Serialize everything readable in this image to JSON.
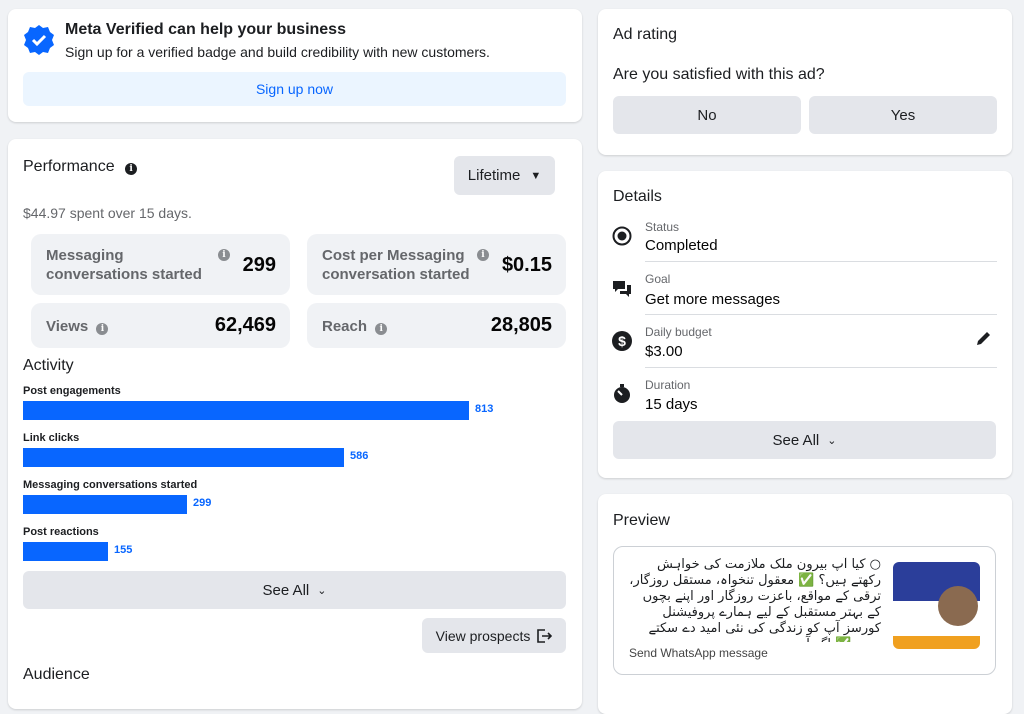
{
  "verified": {
    "title": "Meta Verified can help your business",
    "subtitle": "Sign up for a verified badge and build credibility with new customers.",
    "button": "Sign up now"
  },
  "performance": {
    "title": "Performance",
    "period": "Lifetime",
    "spent": "$44.97 spent over 15 days.",
    "metrics": [
      {
        "label": "Messaging conversations started",
        "value": "299"
      },
      {
        "label": "Cost per Messaging conversation started",
        "value": "$0.15"
      },
      {
        "label": "Views",
        "value": "62,469"
      },
      {
        "label": "Reach",
        "value": "28,805"
      }
    ]
  },
  "activity": {
    "title": "Activity",
    "items": [
      {
        "label": "Post engagements",
        "value": 813
      },
      {
        "label": "Link clicks",
        "value": 586
      },
      {
        "label": "Messaging conversations started",
        "value": 299
      },
      {
        "label": "Post reactions",
        "value": 155
      }
    ],
    "see_all": "See All",
    "view_prospects": "View prospects"
  },
  "audience": {
    "title": "Audience"
  },
  "rating": {
    "title": "Ad rating",
    "question": "Are you satisfied with this ad?",
    "no": "No",
    "yes": "Yes"
  },
  "details": {
    "title": "Details",
    "rows": [
      {
        "label": "Status",
        "value": "Completed",
        "icon": "radio-icon"
      },
      {
        "label": "Goal",
        "value": "Get more messages",
        "icon": "chat-icon"
      },
      {
        "label": "Daily budget",
        "value": "$3.00",
        "icon": "dollar-icon"
      },
      {
        "label": "Duration",
        "value": "15 days",
        "icon": "stopwatch-icon"
      }
    ],
    "see_all": "See All"
  },
  "preview": {
    "title": "Preview",
    "text": "○ کیا آپ بیرون ملک ملازمت کی خواہش رکھتے ہیں؟ ✅ معقول تنخواہ، مستقل روزگار، ترقی کے مواقع، باعزت روزگار اور اپنے بچوں کے بہتر مستقبل کے لیے ہمارے پروفیشنل کورسز آپ کو زندگی کی نئی امید دے سکتے ہیں. ✅ اگر آپ ب...",
    "cta": "Send WhatsApp message"
  },
  "colors": {
    "accent": "#0866ff",
    "verified_bg": "#ebf5ff"
  }
}
